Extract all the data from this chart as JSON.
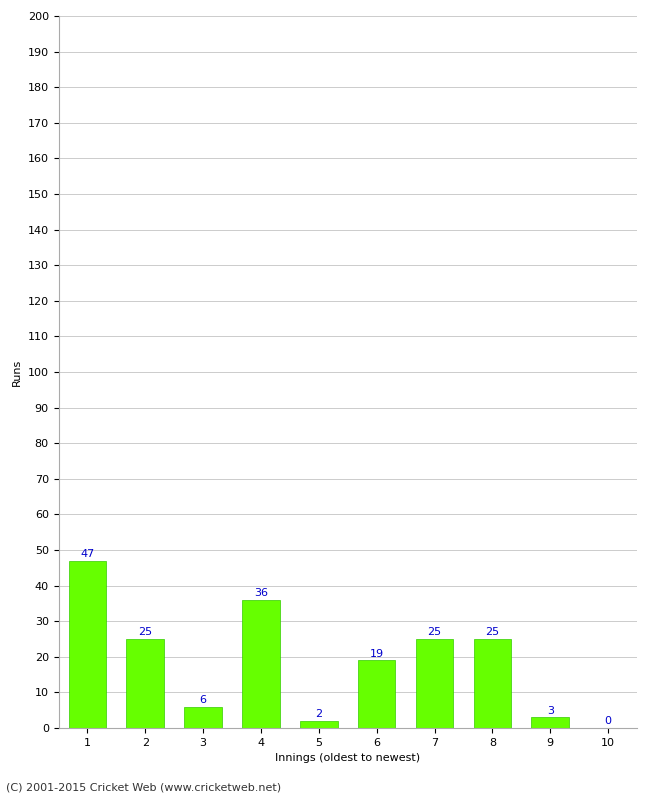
{
  "xlabel": "Innings (oldest to newest)",
  "ylabel": "Runs",
  "categories": [
    "1",
    "2",
    "3",
    "4",
    "5",
    "6",
    "7",
    "8",
    "9",
    "10"
  ],
  "values": [
    47,
    25,
    6,
    36,
    2,
    19,
    25,
    25,
    3,
    0
  ],
  "bar_color": "#66ff00",
  "bar_edgecolor": "#33cc00",
  "label_color": "#0000cc",
  "ylim": [
    0,
    200
  ],
  "yticks": [
    0,
    10,
    20,
    30,
    40,
    50,
    60,
    70,
    80,
    90,
    100,
    110,
    120,
    130,
    140,
    150,
    160,
    170,
    180,
    190,
    200
  ],
  "background_color": "#ffffff",
  "grid_color": "#cccccc",
  "footer_text": "(C) 2001-2015 Cricket Web (www.cricketweb.net)",
  "axis_label_fontsize": 8,
  "tick_fontsize": 8,
  "bar_label_fontsize": 8,
  "footer_fontsize": 8,
  "bar_width": 0.65
}
